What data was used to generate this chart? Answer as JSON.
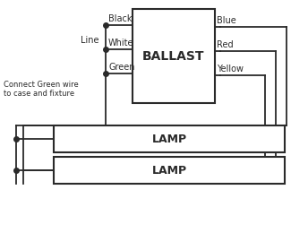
{
  "bg_color": "#ffffff",
  "line_color": "#2a2a2a",
  "ballast_label": "BALLAST",
  "lamp_label": "LAMP",
  "line_label": "Line",
  "wire_labels_left": [
    "Black",
    "White",
    "Green"
  ],
  "wire_labels_right": [
    "Blue",
    "Red",
    "Yellow"
  ],
  "note_text": "Connect Green wire\nto case and fixture"
}
